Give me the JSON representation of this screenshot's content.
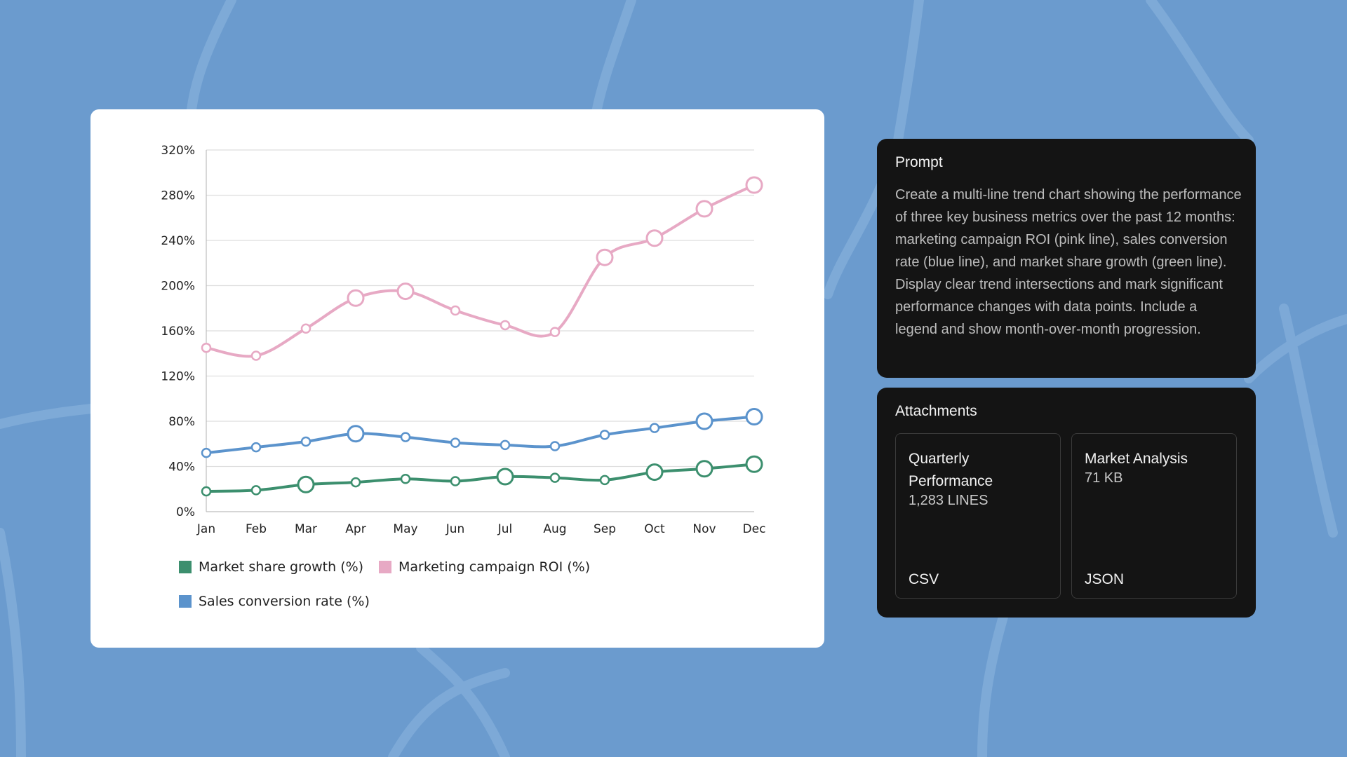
{
  "chart_data": {
    "type": "line",
    "categories": [
      "Jan",
      "Feb",
      "Mar",
      "Apr",
      "May",
      "Jun",
      "Jul",
      "Aug",
      "Sep",
      "Oct",
      "Nov",
      "Dec"
    ],
    "ylim": [
      0,
      320
    ],
    "yticks": [
      "0%",
      "40%",
      "80%",
      "120%",
      "160%",
      "200%",
      "240%",
      "280%",
      "320%"
    ],
    "ytick_values": [
      0,
      40,
      80,
      120,
      160,
      200,
      240,
      280,
      320
    ],
    "grid": true,
    "legend_position": "bottom-left",
    "series": [
      {
        "name": "Market share growth (%)",
        "color": "#3c8f6e",
        "values": [
          18,
          19,
          24,
          26,
          29,
          27,
          31,
          30,
          28,
          35,
          38,
          42
        ],
        "highlight": [
          false,
          false,
          true,
          false,
          false,
          false,
          true,
          false,
          false,
          true,
          true,
          true
        ]
      },
      {
        "name": "Marketing campaign ROI (%)",
        "color": "#e7a9c4",
        "values": [
          145,
          138,
          162,
          189,
          195,
          178,
          165,
          159,
          225,
          242,
          268,
          289
        ],
        "highlight": [
          false,
          false,
          false,
          true,
          true,
          false,
          false,
          false,
          true,
          true,
          true,
          true
        ]
      },
      {
        "name": "Sales conversion rate (%)",
        "color": "#5b93cc",
        "values": [
          52,
          57,
          62,
          69,
          66,
          61,
          59,
          58,
          68,
          74,
          80,
          84
        ],
        "highlight": [
          false,
          false,
          false,
          true,
          false,
          false,
          false,
          false,
          false,
          false,
          true,
          true
        ]
      }
    ]
  },
  "prompt": {
    "title": "Prompt",
    "text": "Create a multi-line trend chart showing the performance of three key business metrics over the past 12 months: marketing campaign ROI (pink line), sales conversion rate (blue line), and market share growth (green line). Display clear trend intersections and mark significant performance changes with data points. Include a legend and show month-over-month progression."
  },
  "attachments": {
    "title": "Attachments",
    "files": [
      {
        "name": "Quarterly Performance",
        "meta": "1,283 LINES",
        "type": "CSV"
      },
      {
        "name": "Market Analysis",
        "meta": "71 KB",
        "type": "JSON"
      }
    ]
  },
  "colors": {
    "background": "#6b9bce",
    "panel": "#141414",
    "card": "#ffffff"
  }
}
